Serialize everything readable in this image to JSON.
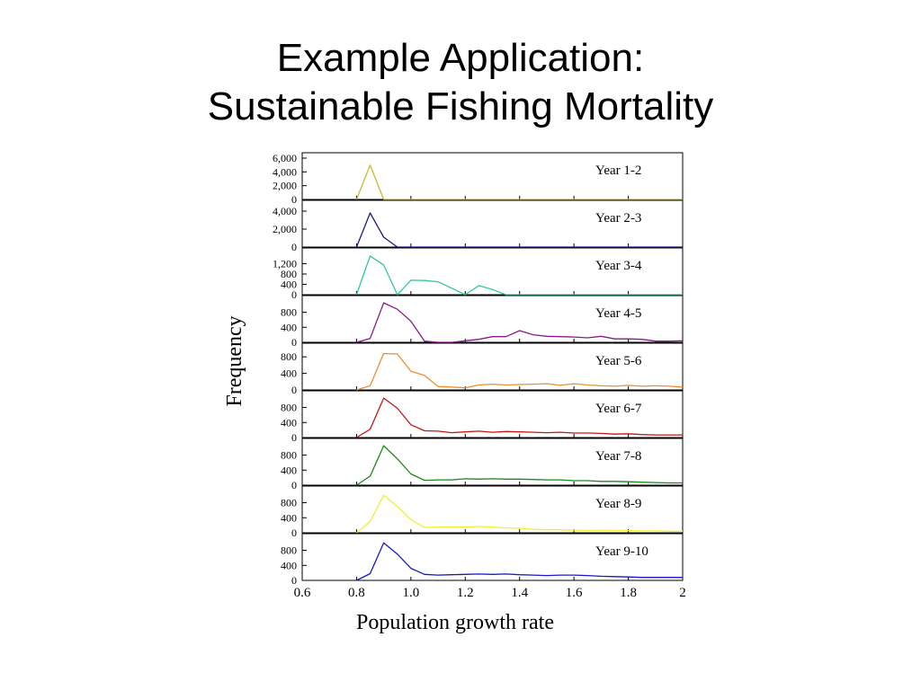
{
  "slide": {
    "title_line1": "Example Application:",
    "title_line2": "Sustainable Fishing Mortality"
  },
  "chart_data": {
    "type": "line",
    "ylabel": "Frequency",
    "xlabel": "Population growth rate",
    "xlim": [
      0.6,
      2.0
    ],
    "x_ticks": [
      0.6,
      0.8,
      1.0,
      1.2,
      1.4,
      1.6,
      1.8,
      2
    ],
    "x_tick_labels": [
      "0.6",
      "0.8",
      "1.0",
      "1.2",
      "1.4",
      "1.6",
      "1.8",
      "2"
    ],
    "x": [
      0.8,
      0.85,
      0.9,
      0.95,
      1.0,
      1.05,
      1.1,
      1.15,
      1.2,
      1.25,
      1.3,
      1.35,
      1.4,
      1.45,
      1.5,
      1.55,
      1.6,
      1.65,
      1.7,
      1.75,
      1.8,
      1.85,
      1.9,
      1.95,
      2.0
    ],
    "panels": [
      {
        "name": "Year 1-2",
        "color": "#c8b832",
        "ylim": [
          0,
          6000
        ],
        "y_ticks": [
          0,
          2000,
          4000,
          6000
        ],
        "y_tick_labels": [
          "0",
          "2,000",
          "4,000",
          "6,000"
        ],
        "values": [
          0,
          5000,
          0,
          0,
          0,
          0,
          0,
          0,
          0,
          0,
          0,
          0,
          0,
          0,
          0,
          0,
          0,
          0,
          0,
          0,
          0,
          0,
          0,
          0,
          0
        ]
      },
      {
        "name": "Year 2-3",
        "color": "#1a1a80",
        "ylim": [
          0,
          4600
        ],
        "y_ticks": [
          0,
          2000,
          4000
        ],
        "y_tick_labels": [
          "0",
          "2,000",
          "4,000"
        ],
        "values": [
          0,
          3800,
          1100,
          0,
          0,
          0,
          0,
          0,
          0,
          0,
          0,
          0,
          0,
          0,
          0,
          0,
          0,
          0,
          0,
          0,
          0,
          0,
          0,
          0,
          0
        ]
      },
      {
        "name": "Year 3-4",
        "color": "#2ec8a0",
        "ylim": [
          0,
          1600
        ],
        "y_ticks": [
          0,
          400,
          800,
          1200
        ],
        "y_tick_labels": [
          "0",
          "400",
          "800",
          "1,200"
        ],
        "values": [
          0,
          1500,
          1150,
          0,
          560,
          550,
          500,
          250,
          0,
          350,
          200,
          0,
          0,
          0,
          0,
          0,
          0,
          0,
          0,
          0,
          0,
          0,
          0,
          0,
          0
        ]
      },
      {
        "name": "Year 4-5",
        "color": "#8a1a8a",
        "ylim": [
          0,
          1100
        ],
        "y_ticks": [
          0,
          400,
          800
        ],
        "y_tick_labels": [
          "0",
          "400",
          "800"
        ],
        "values": [
          0,
          100,
          1050,
          880,
          560,
          30,
          0,
          0,
          40,
          80,
          150,
          150,
          310,
          200,
          160,
          150,
          140,
          120,
          160,
          90,
          90,
          80,
          30,
          30,
          40
        ]
      },
      {
        "name": "Year 5-6",
        "color": "#e89030",
        "ylim": [
          0,
          1000
        ],
        "y_ticks": [
          0,
          400,
          800
        ],
        "y_tick_labels": [
          "0",
          "400",
          "800"
        ],
        "values": [
          0,
          100,
          880,
          870,
          450,
          350,
          80,
          70,
          50,
          120,
          140,
          120,
          130,
          140,
          150,
          110,
          150,
          120,
          100,
          90,
          110,
          90,
          100,
          90,
          70
        ]
      },
      {
        "name": "Year 6-7",
        "color": "#c01818",
        "ylim": [
          0,
          1100
        ],
        "y_ticks": [
          0,
          400,
          800
        ],
        "y_tick_labels": [
          "0",
          "400",
          "800"
        ],
        "values": [
          0,
          220,
          1050,
          780,
          340,
          180,
          170,
          130,
          150,
          170,
          140,
          160,
          150,
          140,
          130,
          140,
          120,
          120,
          110,
          90,
          100,
          80,
          70,
          70,
          70
        ]
      },
      {
        "name": "Year 7-8",
        "color": "#1a8a1a",
        "ylim": [
          0,
          1100
        ],
        "y_ticks": [
          0,
          400,
          800
        ],
        "y_tick_labels": [
          "0",
          "400",
          "800"
        ],
        "values": [
          0,
          240,
          1050,
          700,
          300,
          130,
          140,
          140,
          170,
          160,
          170,
          160,
          160,
          150,
          140,
          140,
          120,
          120,
          100,
          100,
          90,
          80,
          70,
          60,
          60
        ]
      },
      {
        "name": "Year 8-9",
        "color": "#f0f030",
        "ylim": [
          0,
          1100
        ],
        "y_ticks": [
          0,
          400,
          800
        ],
        "y_tick_labels": [
          "0",
          "400",
          "800"
        ],
        "values": [
          0,
          300,
          1000,
          700,
          350,
          140,
          150,
          150,
          150,
          170,
          150,
          130,
          120,
          90,
          80,
          80,
          70,
          60,
          70,
          60,
          60,
          50,
          50,
          40,
          40
        ]
      },
      {
        "name": "Year 9-10",
        "color": "#1818c8",
        "ylim": [
          0,
          1100
        ],
        "y_ticks": [
          0,
          400,
          800
        ],
        "y_tick_labels": [
          "0",
          "400",
          "800"
        ],
        "values": [
          0,
          180,
          1000,
          700,
          320,
          160,
          140,
          150,
          160,
          170,
          160,
          170,
          150,
          140,
          130,
          140,
          140,
          130,
          110,
          100,
          90,
          80,
          80,
          80,
          80
        ]
      }
    ]
  }
}
